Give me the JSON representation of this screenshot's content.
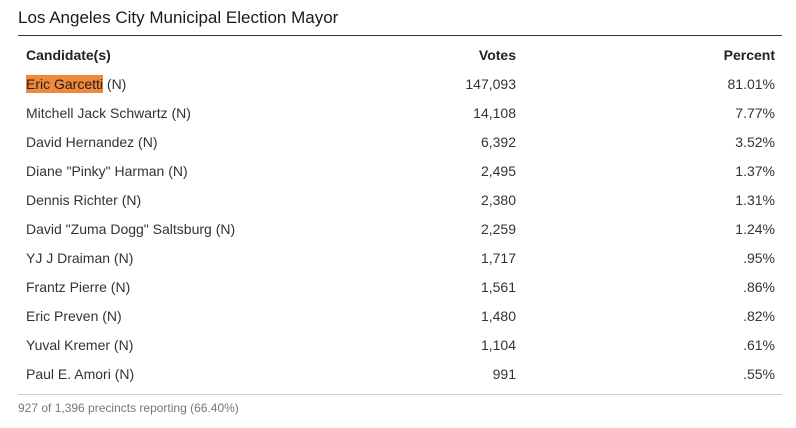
{
  "title": "Los Angeles City Municipal Election Mayor",
  "headers": {
    "candidate": "Candidate(s)",
    "votes": "Votes",
    "percent": "Percent"
  },
  "rows": [
    {
      "name": "Eric Garcetti",
      "suffix": " (N)",
      "votes": "147,093",
      "percent": "81.01%",
      "highlighted": true
    },
    {
      "name": "Mitchell Jack Schwartz",
      "suffix": " (N)",
      "votes": "14,108",
      "percent": "7.77%"
    },
    {
      "name": "David Hernandez",
      "suffix": " (N)",
      "votes": "6,392",
      "percent": "3.52%"
    },
    {
      "name": "Diane \"Pinky\" Harman",
      "suffix": " (N)",
      "votes": "2,495",
      "percent": "1.37%"
    },
    {
      "name": "Dennis Richter",
      "suffix": " (N)",
      "votes": "2,380",
      "percent": "1.31%"
    },
    {
      "name": "David \"Zuma Dogg\" Saltsburg",
      "suffix": " (N)",
      "votes": "2,259",
      "percent": "1.24%"
    },
    {
      "name": "YJ J Draiman",
      "suffix": " (N)",
      "votes": "1,717",
      "percent": ".95%"
    },
    {
      "name": "Frantz Pierre",
      "suffix": " (N)",
      "votes": "1,561",
      "percent": ".86%"
    },
    {
      "name": "Eric Preven",
      "suffix": " (N)",
      "votes": "1,480",
      "percent": ".82%"
    },
    {
      "name": "Yuval Kremer",
      "suffix": " (N)",
      "votes": "1,104",
      "percent": ".61%"
    },
    {
      "name": "Paul E. Amori",
      "suffix": " (N)",
      "votes": "991",
      "percent": ".55%"
    }
  ],
  "colors": {
    "highlight": "#f0893a"
  },
  "footer": "927 of 1,396 precincts reporting (66.40%)"
}
